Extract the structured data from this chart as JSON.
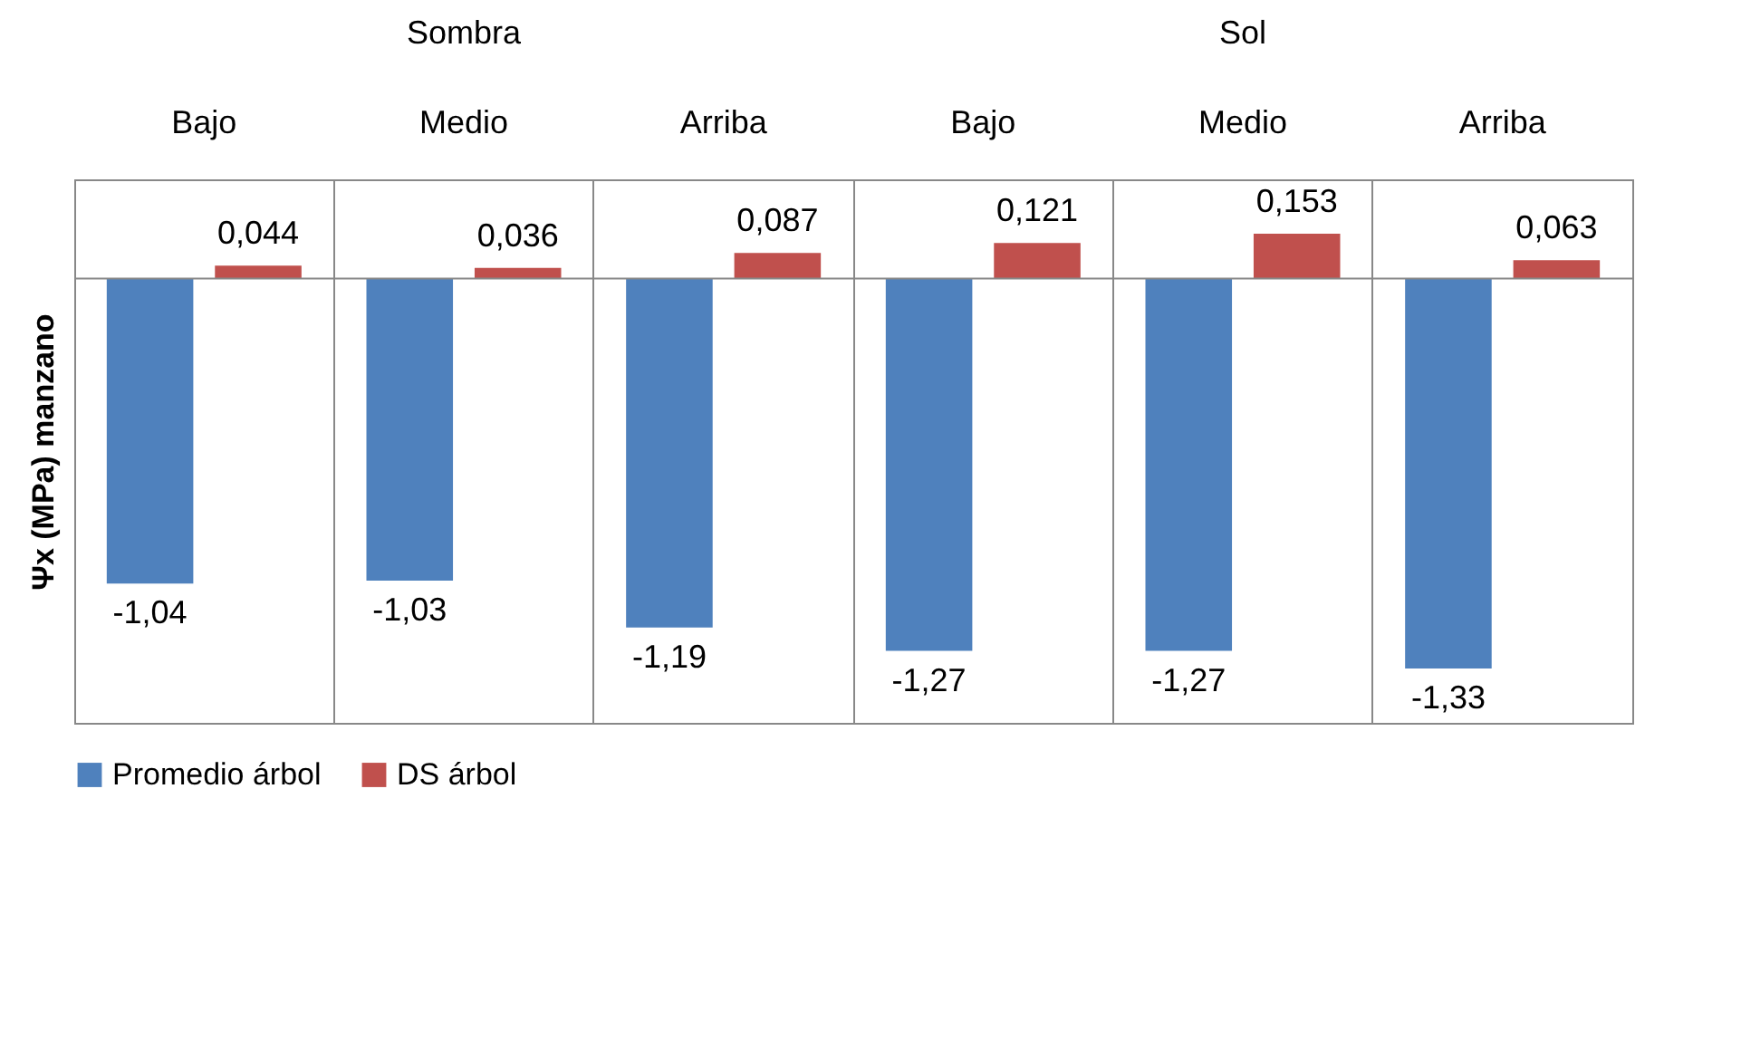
{
  "chart_data": {
    "type": "bar",
    "ylabel": "Ψx (MPa) manzano",
    "categories": [
      "Bajo",
      "Medio",
      "Arriba",
      "Bajo",
      "Medio",
      "Arriba"
    ],
    "annotations": [
      "Sombra",
      "Sol"
    ],
    "series": [
      {
        "name": "Promedio árbol",
        "color": "#4f81bd",
        "values": [
          -1.04,
          -1.03,
          -1.19,
          -1.27,
          -1.27,
          -1.33
        ],
        "value_labels": [
          "-1,04",
          "-1,03",
          "-1,19",
          "-1,27",
          "-1,27",
          "-1,33"
        ]
      },
      {
        "name": "DS árbol",
        "color": "#c0504d",
        "values": [
          0.044,
          0.036,
          0.087,
          0.121,
          0.153,
          0.063
        ],
        "value_labels": [
          "0,044",
          "0,036",
          "0,087",
          "0,121",
          "0,153",
          "0,063"
        ]
      }
    ],
    "legend": "bottom",
    "grid": "x"
  }
}
